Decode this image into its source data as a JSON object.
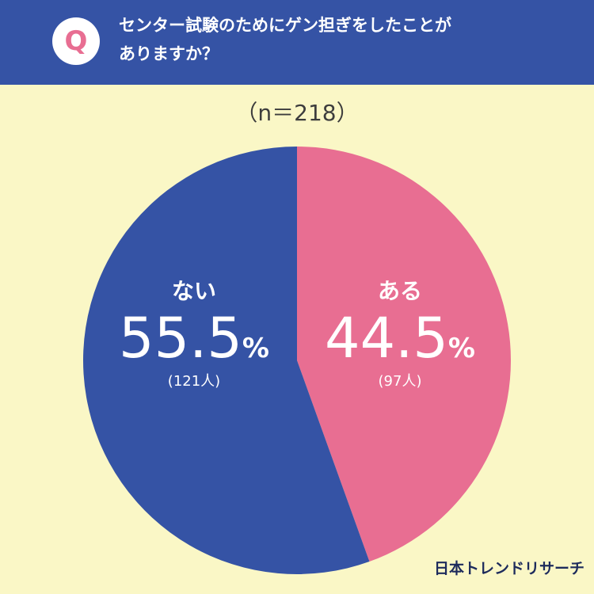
{
  "header": {
    "badge": "Q",
    "question_line1": "センター試験のためにゲン担ぎをしたことが",
    "question_line2": "ありますか？"
  },
  "sample_size": "（n＝218）",
  "brand": "日本トレンドリサーチ",
  "colors": {
    "header": "#3553A5",
    "background": "#FAF7C6",
    "ari": "#E86E92",
    "nai": "#3553A5"
  },
  "chart_data": {
    "type": "pie",
    "title": "センター試験のためにゲン担ぎをしたことがありますか？",
    "n": 218,
    "slices": [
      {
        "label": "ある",
        "value": 44.5,
        "percent_text": "44.5",
        "unit": "%",
        "count_text": "(97人)",
        "color": "#E86E92"
      },
      {
        "label": "ない",
        "value": 55.5,
        "percent_text": "55.5",
        "unit": "%",
        "count_text": "(121人)",
        "color": "#3553A5"
      }
    ]
  }
}
